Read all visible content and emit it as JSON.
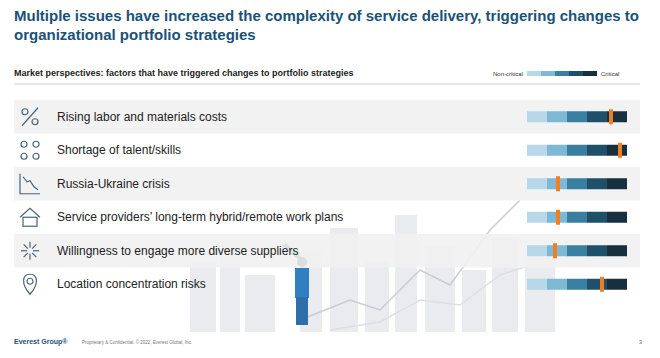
{
  "chart_data": {
    "type": "dot",
    "title": "Multiple issues have increased the complexity of service delivery, triggering changes to organizational portfolio strategies",
    "subtitle": "Market perspectives: factors that have triggered changes to portfolio strategies",
    "categories": [
      "Rising labor and materials costs",
      "Shortage of talent/skills",
      "Russia-Ukraine crisis",
      "Service providers’ long-term hybrid/remote work plans",
      "Willingness to engage more diverse suppliers",
      "Location concentration risks"
    ],
    "values": [
      84,
      93,
      31,
      31,
      28,
      75
    ],
    "color": "#f07f22",
    "xlim": [
      0,
      100
    ],
    "orientation": "horizontal",
    "tick_labels": false,
    "annotations": [
      "Non-critical",
      "Critical",
      "Everest Group®",
      "Proprietary & Confidential. © 2022, Everest Global, Inc.",
      "3"
    ]
  }
}
